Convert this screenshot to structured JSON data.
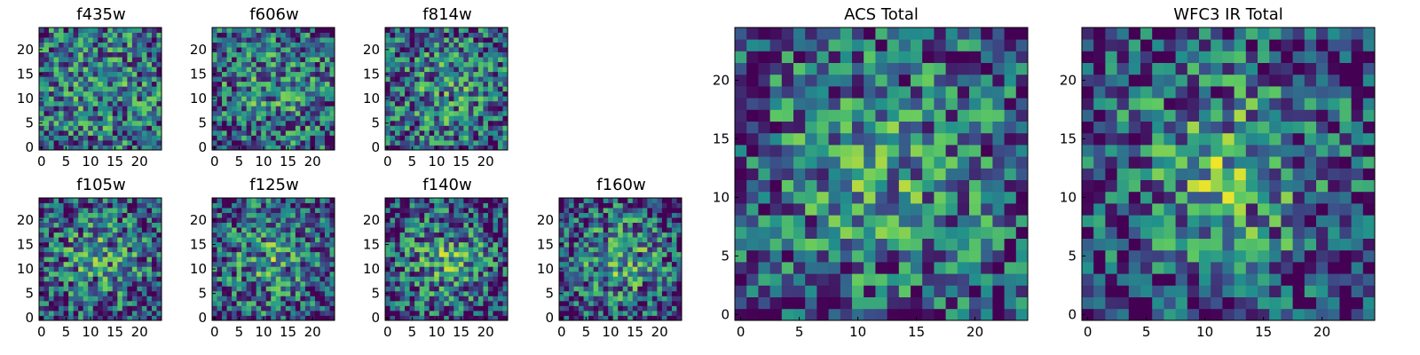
{
  "colormap": [
    "#440154",
    "#3b528b",
    "#21918c",
    "#5ec962",
    "#fde725"
  ],
  "chart_data": [
    {
      "type": "heatmap",
      "title": "f435w",
      "size": 25,
      "seed": 11,
      "center_boost": 0.1,
      "xticks": [
        0,
        5,
        10,
        15,
        20
      ],
      "yticks": [
        0,
        5,
        10,
        15,
        20
      ],
      "xlim": [
        0,
        25
      ],
      "ylim": [
        0,
        25
      ]
    },
    {
      "type": "heatmap",
      "title": "f606w",
      "size": 25,
      "seed": 23,
      "center_boost": 0.15,
      "xticks": [
        0,
        5,
        10,
        15,
        20
      ],
      "yticks": [
        0,
        5,
        10,
        15,
        20
      ],
      "xlim": [
        0,
        25
      ],
      "ylim": [
        0,
        25
      ]
    },
    {
      "type": "heatmap",
      "title": "f814w",
      "size": 25,
      "seed": 37,
      "center_boost": 0.2,
      "xticks": [
        0,
        5,
        10,
        15,
        20
      ],
      "yticks": [
        0,
        5,
        10,
        15,
        20
      ],
      "xlim": [
        0,
        25
      ],
      "ylim": [
        0,
        25
      ]
    },
    {
      "type": "heatmap",
      "title": "f105w",
      "size": 25,
      "seed": 41,
      "center_boost": 0.35,
      "xticks": [
        0,
        5,
        10,
        15,
        20
      ],
      "yticks": [
        0,
        5,
        10,
        15,
        20
      ],
      "xlim": [
        0,
        25
      ],
      "ylim": [
        0,
        25
      ]
    },
    {
      "type": "heatmap",
      "title": "f125w",
      "size": 25,
      "seed": 53,
      "center_boost": 0.3,
      "xticks": [
        0,
        5,
        10,
        15,
        20
      ],
      "yticks": [
        0,
        5,
        10,
        15,
        20
      ],
      "xlim": [
        0,
        25
      ],
      "ylim": [
        0,
        25
      ]
    },
    {
      "type": "heatmap",
      "title": "f140w",
      "size": 25,
      "seed": 67,
      "center_boost": 0.4,
      "xticks": [
        0,
        5,
        10,
        15,
        20
      ],
      "yticks": [
        0,
        5,
        10,
        15,
        20
      ],
      "xlim": [
        0,
        25
      ],
      "ylim": [
        0,
        25
      ]
    },
    {
      "type": "heatmap",
      "title": "f160w",
      "size": 25,
      "seed": 79,
      "center_boost": 0.4,
      "xticks": [
        0,
        5,
        10,
        15,
        20
      ],
      "yticks": [
        0,
        5,
        10,
        15,
        20
      ],
      "xlim": [
        0,
        25
      ],
      "ylim": [
        0,
        25
      ]
    },
    {
      "type": "heatmap",
      "title": "ACS Total",
      "size": 25,
      "seed": 97,
      "center_boost": 0.3,
      "xticks": [
        0,
        5,
        10,
        15,
        20
      ],
      "yticks": [
        0,
        5,
        10,
        15,
        20
      ],
      "xlim": [
        0,
        25
      ],
      "ylim": [
        0,
        25
      ]
    },
    {
      "type": "heatmap",
      "title": "WFC3 IR Total",
      "size": 25,
      "seed": 131,
      "center_boost": 0.45,
      "xticks": [
        0,
        5,
        10,
        15,
        20
      ],
      "yticks": [
        0,
        5,
        10,
        15,
        20
      ],
      "xlim": [
        0,
        25
      ],
      "ylim": [
        0,
        25
      ]
    }
  ]
}
